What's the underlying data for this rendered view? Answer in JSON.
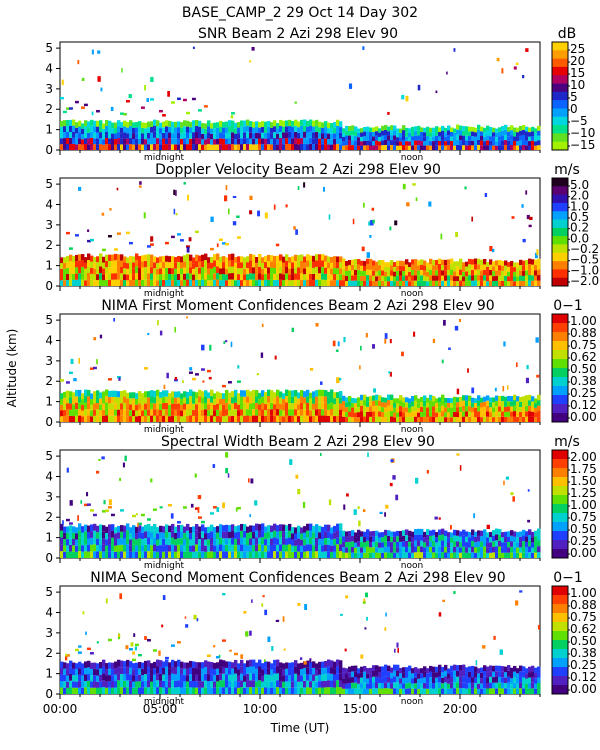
{
  "chart_data": {
    "type": "heatmap",
    "title": "BASE_CAMP_2  29 Oct 14 Day 302",
    "xlabel": "Time (UT)",
    "ylabel": "Altitude (km)",
    "xlim": [
      0,
      24
    ],
    "x_ticks": [
      "00:00",
      "05:00",
      "10:00",
      "15:00",
      "20:00"
    ],
    "x_tick_values": [
      0,
      5,
      10,
      15,
      20
    ],
    "y_ticks": [
      "0",
      "1",
      "2",
      "3",
      "4",
      "5"
    ],
    "ylim": [
      0,
      5.3
    ],
    "markers": [
      {
        "label": "midnight",
        "hour": 5.2
      },
      {
        "label": "noon",
        "hour": 17.6
      }
    ],
    "panels": [
      {
        "title": "SNR Beam 2 Azi 298 Elev 90",
        "unit": "dB",
        "colorbar_labels": [
          "25",
          "20",
          "15",
          "10",
          "5",
          "0",
          "−5",
          "−10",
          "−15"
        ],
        "colors": [
          "#ffd000",
          "#ff9d00",
          "#ff5a00",
          "#e60000",
          "#b00060",
          "#4b0082",
          "#1e28c8",
          "#0a64ff",
          "#00a0ff",
          "#00d8e0",
          "#00e08a",
          "#60e020",
          "#a0f000"
        ],
        "layer_top_km": 1.3
      },
      {
        "title": "Doppler Velocity Beam 2 Azi 298 Elev 90",
        "unit": "m/s",
        "colorbar_labels": [
          "5.0",
          "2.0",
          "1.0",
          "0.5",
          "0.2",
          "0.0",
          "−0.2",
          "−0.5",
          "−1.0",
          "−2.0"
        ],
        "colors": [
          "#200020",
          "#5a0070",
          "#3010b0",
          "#2040ff",
          "#00a0ff",
          "#00d0d0",
          "#00d060",
          "#60e000",
          "#c0e000",
          "#ffd000",
          "#ff8000",
          "#ff3000",
          "#c00000"
        ],
        "layer_top_km": 1.4
      },
      {
        "title": "NIMA First Moment Confidences Beam 2 Azi 298 Elev 90",
        "unit": "0−1",
        "colorbar_labels": [
          "1.00",
          "0.88",
          "0.75",
          "0.62",
          "0.50",
          "0.38",
          "0.25",
          "0.12",
          "0.00"
        ],
        "colors": [
          "#e00000",
          "#ff4000",
          "#ff8000",
          "#ffc000",
          "#c0e000",
          "#60e000",
          "#00d060",
          "#00d0d0",
          "#00a0ff",
          "#2040ff",
          "#5020c0",
          "#400080"
        ],
        "layer_top_km": 1.4
      },
      {
        "title": "Spectral Width Beam 2 Azi 298 Elev 90",
        "unit": "m/s",
        "colorbar_labels": [
          "2.00",
          "1.75",
          "1.50",
          "1.25",
          "1.00",
          "0.75",
          "0.50",
          "0.25",
          "0.00"
        ],
        "colors": [
          "#e00000",
          "#ff4000",
          "#ff8000",
          "#ffc000",
          "#c0e000",
          "#60e000",
          "#00d060",
          "#00d0d0",
          "#00a0ff",
          "#2040ff",
          "#5020c0",
          "#400080"
        ],
        "layer_top_km": 1.5
      },
      {
        "title": "NIMA Second Moment Confidences Beam 2 Azi 298 Elev 90",
        "unit": "0−1",
        "colorbar_labels": [
          "1.00",
          "0.88",
          "0.75",
          "0.62",
          "0.50",
          "0.38",
          "0.25",
          "0.12",
          "0.00"
        ],
        "colors": [
          "#e00000",
          "#ff4000",
          "#ff8000",
          "#ffc000",
          "#c0e000",
          "#60e000",
          "#00d060",
          "#00d0d0",
          "#00a0ff",
          "#2040ff",
          "#5020c0",
          "#400080"
        ],
        "layer_top_km": 1.5
      }
    ]
  }
}
